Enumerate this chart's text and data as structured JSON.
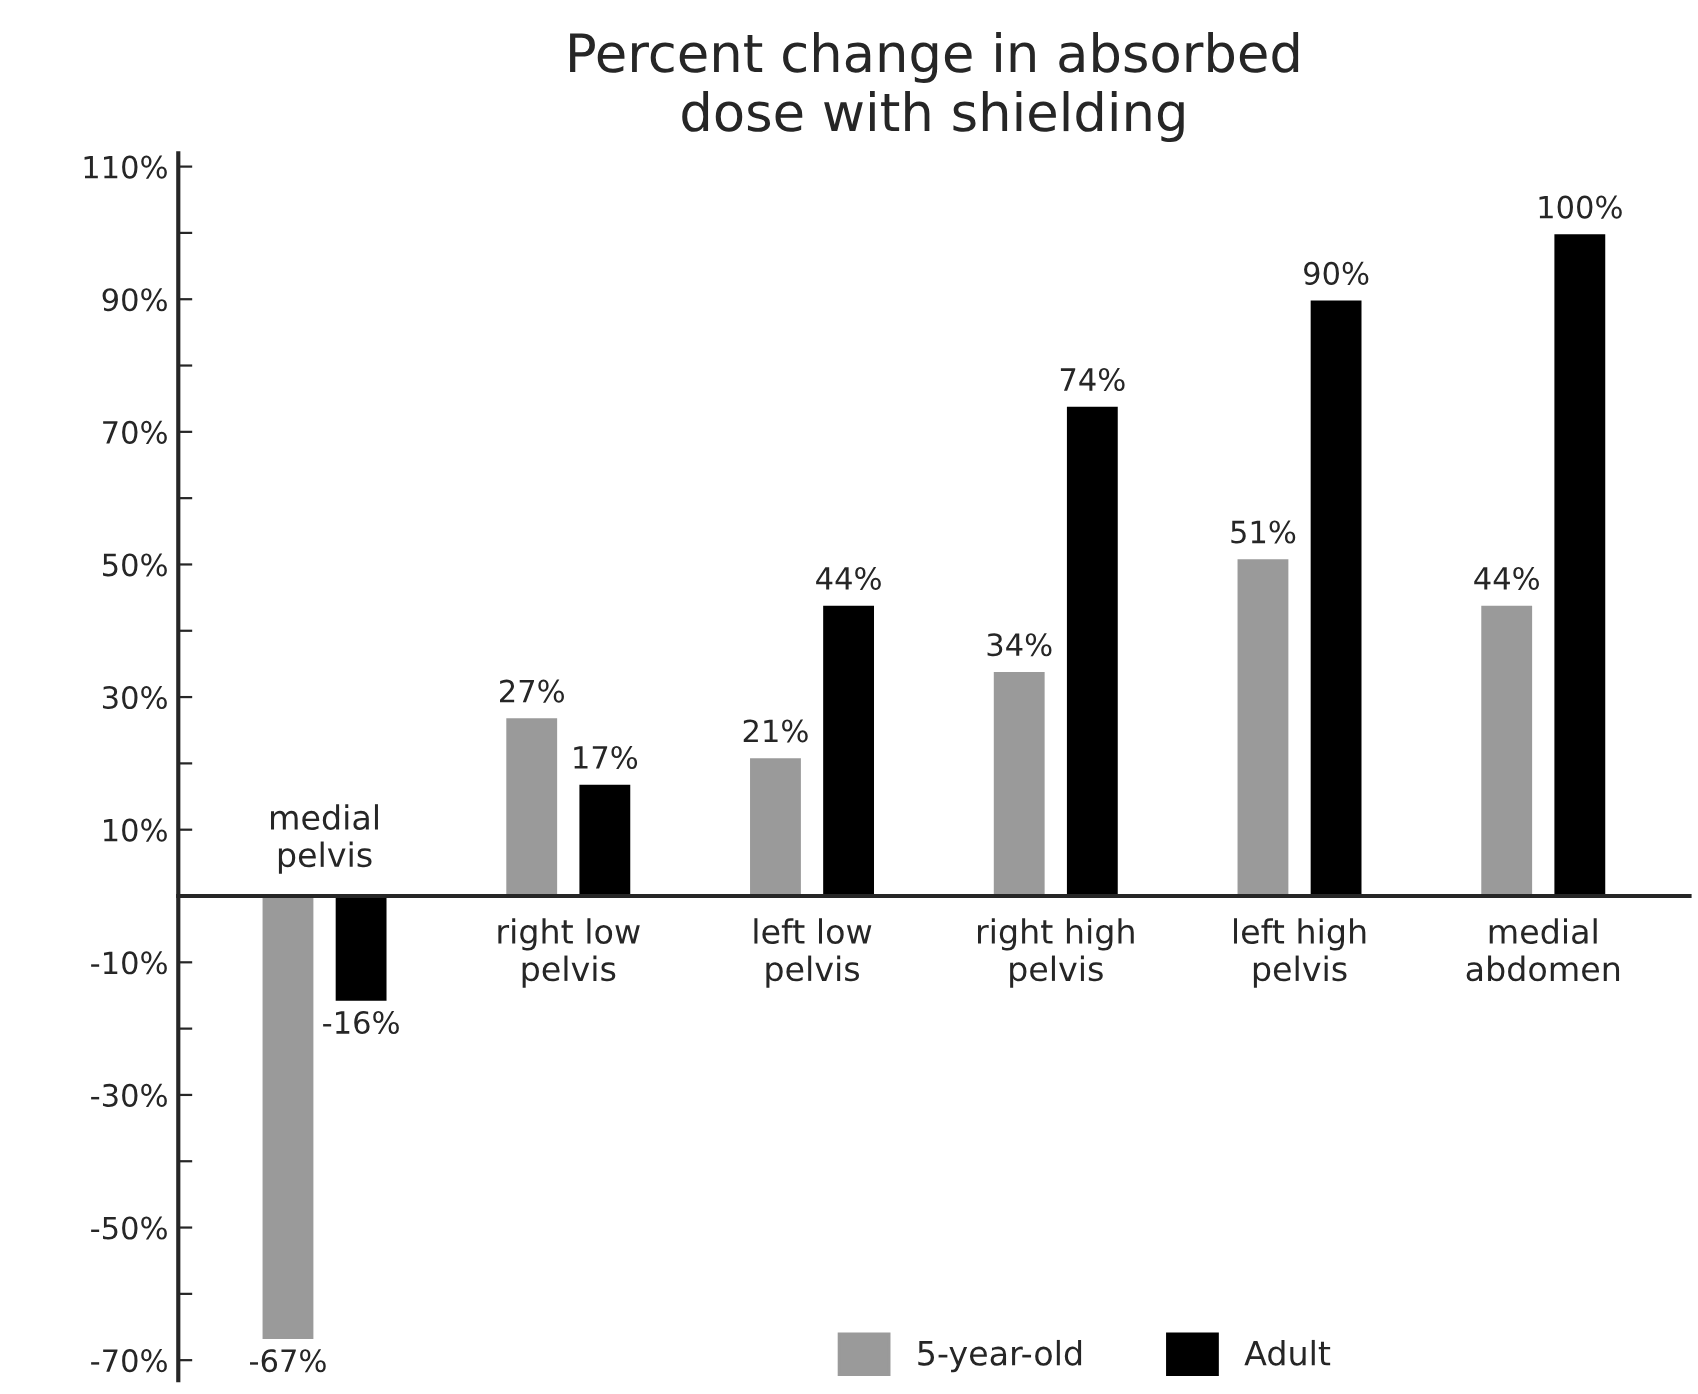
{
  "chart_data": {
    "type": "bar",
    "title": "Percent change in absorbed\ndose with shielding",
    "categories": [
      "medial\npelvis",
      "right low\npelvis",
      "left low\npelvis",
      "right high\npelvis",
      "left high\npelvis",
      "medial\nabdomen"
    ],
    "series": [
      {
        "name": "5-year-old",
        "color": "#9a9a9a",
        "values": [
          -67,
          27,
          21,
          34,
          51,
          44
        ],
        "value_labels": [
          "-67%",
          "27%",
          "21%",
          "34%",
          "51%",
          "44%"
        ]
      },
      {
        "name": "Adult",
        "color": "#000000",
        "values": [
          -16,
          17,
          44,
          74,
          90,
          100
        ],
        "value_labels": [
          "-16%",
          "17%",
          "44%",
          "74%",
          "90%",
          "100%"
        ]
      }
    ],
    "ylim": [
      -73,
      112
    ],
    "yticks": [
      {
        "value": -70,
        "label": "-70%"
      },
      {
        "value": -60,
        "label": null
      },
      {
        "value": -50,
        "label": "-50%"
      },
      {
        "value": -40,
        "label": null
      },
      {
        "value": -30,
        "label": "-30%"
      },
      {
        "value": -20,
        "label": null
      },
      {
        "value": -10,
        "label": "-10%"
      },
      {
        "value": 0,
        "label": null
      },
      {
        "value": 10,
        "label": "10%"
      },
      {
        "value": 20,
        "label": null
      },
      {
        "value": 30,
        "label": "30%"
      },
      {
        "value": 40,
        "label": null
      },
      {
        "value": 50,
        "label": "50%"
      },
      {
        "value": 60,
        "label": null
      },
      {
        "value": 70,
        "label": "70%"
      },
      {
        "value": 80,
        "label": null
      },
      {
        "value": 90,
        "label": "90%"
      },
      {
        "value": 100,
        "label": null
      },
      {
        "value": 110,
        "label": "110%"
      }
    ],
    "grid": false,
    "legend": "bottom"
  }
}
